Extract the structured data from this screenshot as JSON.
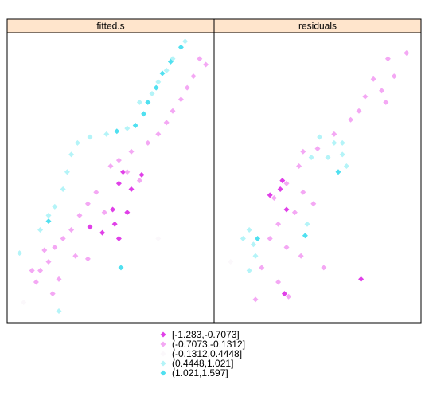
{
  "chart_data": [
    {
      "type": "scatter",
      "title": "fitted.s",
      "xlim": [
        0,
        100
      ],
      "ylim": [
        0,
        100
      ],
      "series": [
        {
          "name": "[-1.283,-0.7073]",
          "color": "#e040e8",
          "x": [
            54,
            56,
            65,
            51,
            46,
            40,
            58,
            52,
            54,
            60
          ],
          "y": [
            48,
            52,
            51,
            39,
            31,
            33,
            38,
            34,
            29,
            46
          ]
        },
        {
          "name": "(-0.7073,-0.1312]",
          "color": "#f4a8f4",
          "x": [
            93,
            96,
            90,
            87,
            84,
            80,
            77,
            73,
            68,
            60,
            54,
            50,
            58,
            64,
            43,
            39,
            47,
            35,
            31,
            27,
            23,
            20,
            16,
            14,
            22,
            33,
            39,
            25,
            12,
            18
          ],
          "y": [
            91,
            89,
            85,
            81,
            77,
            73,
            69,
            65,
            62,
            59,
            56,
            54,
            52,
            49,
            45,
            41,
            38,
            37,
            32,
            29,
            26,
            21,
            18,
            14,
            10,
            23,
            22,
            15,
            18,
            25
          ]
        },
        {
          "name": "(-0.1312,0.4448]",
          "color": "#fbf8fb",
          "x": [
            8,
            73
          ],
          "y": [
            7,
            29
          ]
        },
        {
          "name": "(0.4448,1.021]",
          "color": "#b4f4f8",
          "x": [
            86,
            80,
            77,
            73,
            70,
            64,
            58,
            48,
            40,
            34,
            31,
            29,
            27,
            23,
            20,
            16,
            6,
            25
          ],
          "y": [
            97,
            91,
            87,
            83,
            79,
            76,
            67,
            65,
            64,
            62,
            58,
            52,
            46,
            40,
            37,
            32,
            24,
            4
          ]
        },
        {
          "name": "(1.021,1.597]",
          "color": "#50e0f0",
          "x": [
            84,
            79,
            75,
            72,
            68,
            66,
            62,
            53,
            20,
            55
          ],
          "y": [
            95,
            90,
            86,
            81,
            76,
            72,
            68,
            66,
            35,
            19
          ]
        }
      ]
    },
    {
      "type": "scatter",
      "title": "residuals",
      "xlim": [
        0,
        100
      ],
      "ylim": [
        0,
        100
      ],
      "series": [
        {
          "color": "#e040e8",
          "x": [
            32,
            33,
            27,
            71,
            34,
            35
          ],
          "y": [
            46,
            49,
            44,
            15,
            10,
            39
          ]
        },
        {
          "color": "#f4a8f4",
          "x": [
            93,
            84,
            87,
            77,
            81,
            73,
            83,
            70,
            66,
            58,
            50,
            43,
            41,
            35,
            29,
            43,
            48,
            39,
            31,
            27,
            35,
            23,
            31,
            20,
            42,
            53,
            36
          ],
          "y": [
            93,
            91,
            85,
            84,
            80,
            78,
            76,
            73,
            70,
            65,
            60,
            59,
            54,
            48,
            43,
            45,
            41,
            38,
            34,
            29,
            26,
            19,
            14,
            8,
            23,
            19,
            9
          ]
        },
        {
          "color": "#fbf8fb",
          "x": [
            8
          ],
          "y": [
            21
          ]
        },
        {
          "color": "#b4f4f8",
          "x": [
            51,
            58,
            62,
            64,
            55,
            47,
            17,
            14,
            19,
            20,
            17,
            45,
            62
          ],
          "y": [
            64,
            62,
            58,
            54,
            57,
            57,
            32,
            29,
            27,
            23,
            18,
            34,
            62
          ]
        },
        {
          "color": "#50e0f0",
          "x": [
            44,
            21,
            60
          ],
          "y": [
            30,
            29,
            52
          ]
        }
      ]
    }
  ]
}
